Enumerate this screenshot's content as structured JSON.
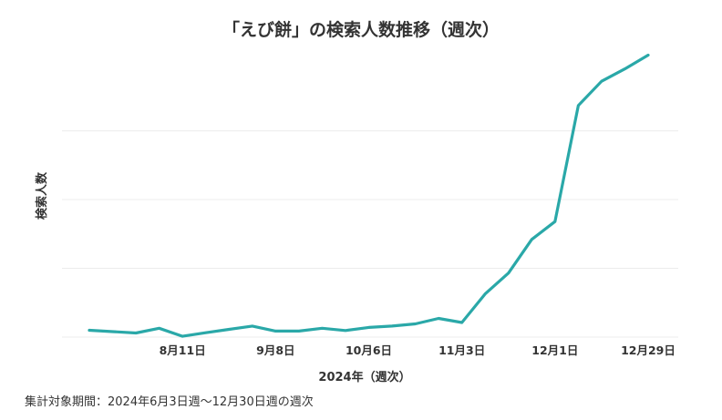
{
  "chart_data": {
    "type": "line",
    "title": "「えび餅」の検索人数推移（週次）",
    "xlabel": "2024年（週次）",
    "ylabel": "検索人数",
    "grid": true,
    "legend": "none",
    "line_color": "#2aa8a8",
    "x": [
      "2024-07-14",
      "2024-07-21",
      "2024-07-28",
      "2024-08-04",
      "2024-08-11",
      "2024-08-18",
      "2024-08-25",
      "2024-09-01",
      "2024-09-08",
      "2024-09-15",
      "2024-09-22",
      "2024-09-29",
      "2024-10-06",
      "2024-10-13",
      "2024-10-20",
      "2024-10-27",
      "2024-11-03",
      "2024-11-10",
      "2024-11-17",
      "2024-11-24",
      "2024-12-01",
      "2024-12-08",
      "2024-12-15",
      "2024-12-22",
      "2024-12-29"
    ],
    "x_ticks": [
      {
        "at": "2024-08-11",
        "label": "8月11日"
      },
      {
        "at": "2024-09-08",
        "label": "9月8日"
      },
      {
        "at": "2024-10-06",
        "label": "10月6日"
      },
      {
        "at": "2024-11-03",
        "label": "11月3日"
      },
      {
        "at": "2024-12-01",
        "label": "12月1日"
      },
      {
        "at": "2024-12-29",
        "label": "12月29日"
      }
    ],
    "values": [
      2.5,
      2.0,
      1.5,
      3.2,
      0.3,
      1.6,
      2.8,
      4.0,
      2.2,
      2.2,
      3.2,
      2.4,
      3.5,
      4.0,
      4.8,
      6.8,
      5.3,
      15.7,
      23.3,
      35.5,
      42.0,
      84.2,
      93.0,
      97.5,
      102.5
    ],
    "ylim": [
      0,
      105
    ],
    "y_gridlines": [
      0,
      25,
      50,
      75
    ]
  },
  "footnote": "集計対象期間：2024年6月3日週〜12月30日週の週次"
}
